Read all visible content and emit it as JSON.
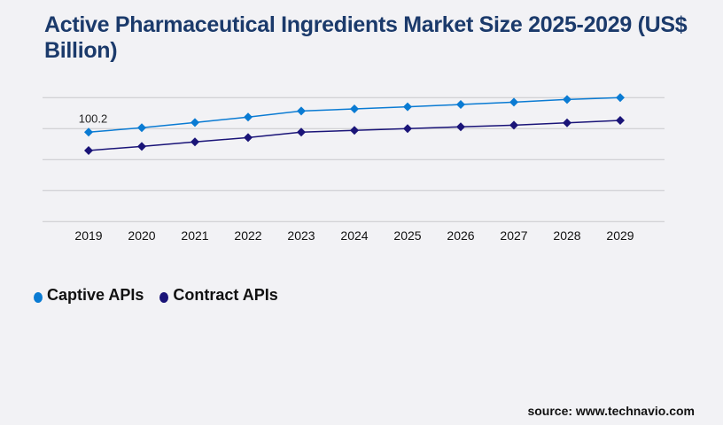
{
  "title": "Active Pharmaceutical Ingredients Market Size 2025-2029 (US$ Billion)",
  "source": "source: www.technavio.com",
  "chart_data": {
    "type": "line",
    "title": "Active Pharmaceutical Ingredients Market Size 2025-2029 (US$ Billion)",
    "xlabel": "",
    "ylabel": "",
    "x": [
      "2019",
      "2020",
      "2021",
      "2022",
      "2023",
      "2024",
      "2025",
      "2026",
      "2027",
      "2028",
      "2029"
    ],
    "ylim": [
      0,
      138.9
    ],
    "grid": true,
    "legend_position": "bottom-left",
    "series": [
      {
        "name": "Captive APIs",
        "color": "#0a7bd3",
        "values": [
          100.2,
          105.2,
          111.1,
          117.1,
          124.0,
          126.3,
          128.6,
          131.2,
          133.9,
          136.9,
          138.9
        ]
      },
      {
        "name": "Contract APIs",
        "color": "#1a1478",
        "values": [
          79.7,
          84.3,
          89.3,
          94.2,
          100.2,
          102.2,
          104.2,
          106.2,
          108.1,
          110.7,
          113.4
        ]
      }
    ],
    "annotations": [
      {
        "x": "2019",
        "series": "Captive APIs",
        "text": "100.2"
      }
    ]
  }
}
